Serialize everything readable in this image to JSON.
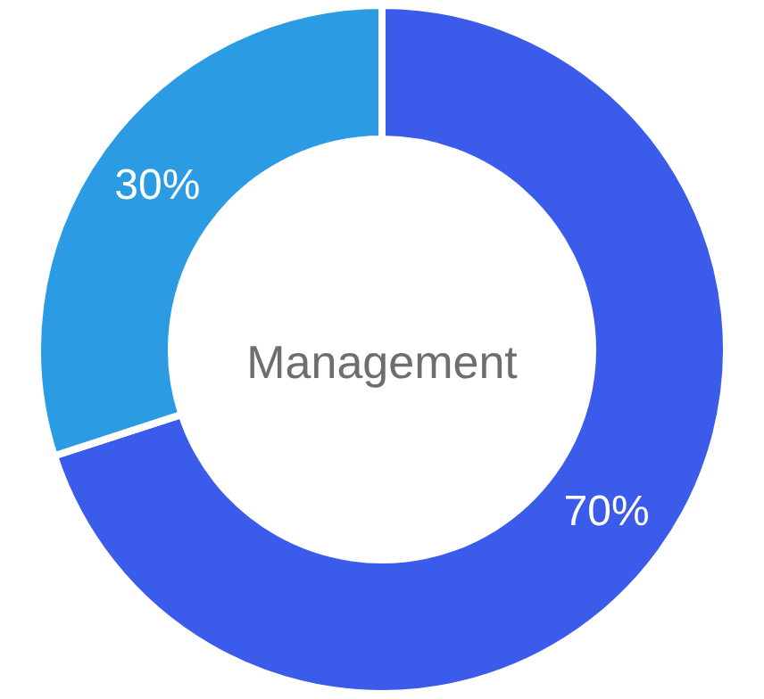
{
  "chart_data": {
    "type": "donut",
    "title": "Management",
    "categories": [
      null,
      null
    ],
    "values": [
      70,
      30
    ],
    "colors": [
      "#3b5beb",
      "#2b9be3"
    ],
    "value_labels": [
      "70%",
      "30%"
    ]
  }
}
